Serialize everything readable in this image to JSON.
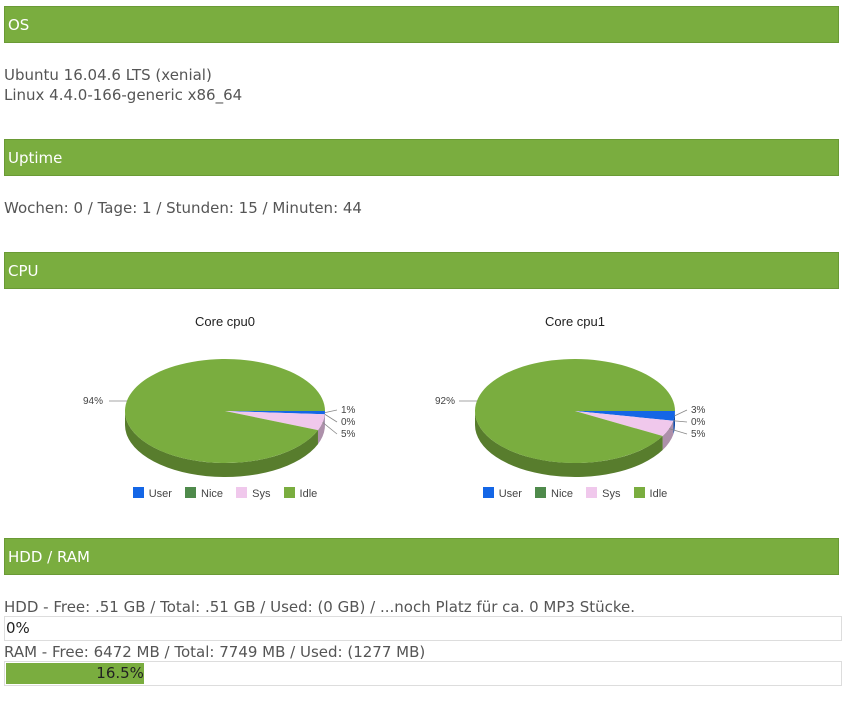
{
  "sections": {
    "os": {
      "title": "OS",
      "line1": "Ubuntu 16.04.6 LTS (xenial)",
      "line2": "Linux 4.4.0-166-generic x86_64"
    },
    "uptime": {
      "title": "Uptime",
      "text": "Wochen: 0 / Tage: 1 / Stunden: 15 / Minuten: 44"
    },
    "cpu": {
      "title": "CPU"
    },
    "hdd_ram": {
      "title": "HDD / RAM",
      "hdd_text": "HDD - Free: .51 GB / Total: .51 GB / Used: (0 GB) / ...noch Platz für ca. 0 MP3 Stücke.",
      "hdd_bar_label": "0%",
      "hdd_percent": 0,
      "ram_text": "RAM - Free: 6472 MB / Total: 7749 MB / Used: (1277 MB)",
      "ram_bar_label": "16.5%",
      "ram_percent": 16.5
    }
  },
  "colors": {
    "header": "#7aad3f",
    "user": "#1466e6",
    "nice": "#4f8a4b",
    "sys": "#f0c8ec",
    "idle": "#7aad3f"
  },
  "chart_data": [
    {
      "type": "pie",
      "title": "Core cpu0",
      "legend": [
        "User",
        "Nice",
        "Sys",
        "Idle"
      ],
      "values": [
        1,
        0,
        5,
        94
      ],
      "labels": [
        "1%",
        "0%",
        "5%",
        "94%"
      ]
    },
    {
      "type": "pie",
      "title": "Core cpu1",
      "legend": [
        "User",
        "Nice",
        "Sys",
        "Idle"
      ],
      "values": [
        3,
        0,
        5,
        92
      ],
      "labels": [
        "3%",
        "0%",
        "5%",
        "92%"
      ]
    }
  ]
}
